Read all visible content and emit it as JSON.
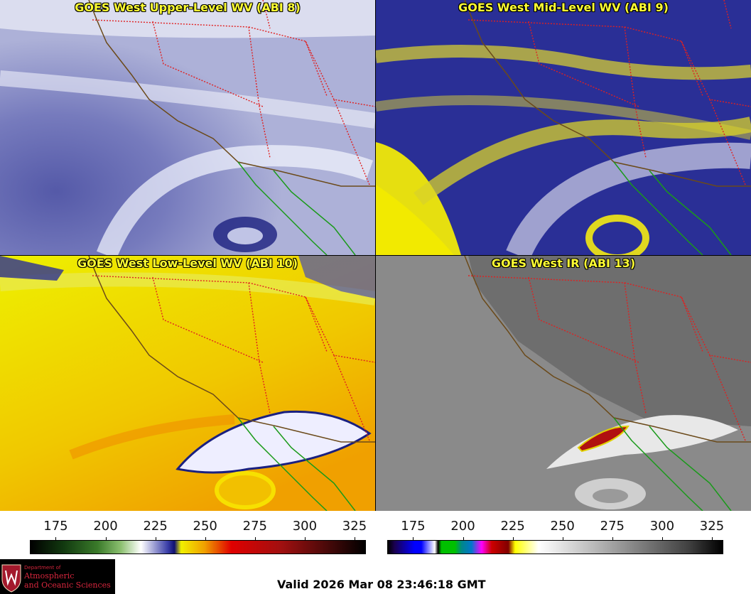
{
  "panels": [
    {
      "title": "GOES West Upper-Level WV (ABI 8)"
    },
    {
      "title": "GOES West Mid-Level WV (ABI 9)"
    },
    {
      "title": "GOES West Low-Level WV (ABI 10)"
    },
    {
      "title": "GOES West IR (ABI 13)"
    }
  ],
  "colorbar_wv": {
    "ticks": [
      "175",
      "200",
      "225",
      "250",
      "275",
      "300",
      "325"
    ],
    "range": [
      162,
      330
    ]
  },
  "colorbar_ir": {
    "ticks": [
      "175",
      "200",
      "225",
      "250",
      "275",
      "300",
      "325"
    ],
    "range": [
      162,
      330
    ]
  },
  "logo": {
    "line1": "Department of",
    "line2": "Atmospheric",
    "line3": "and Oceanic Sciences"
  },
  "valid_time": "Valid 2026 Mar 08 23:46:18 GMT",
  "colors": {
    "border_state": "#e02020",
    "coastline": "#6b4a1a",
    "mexico_coast": "#1a9a1a",
    "title_text": "#ffff33"
  }
}
